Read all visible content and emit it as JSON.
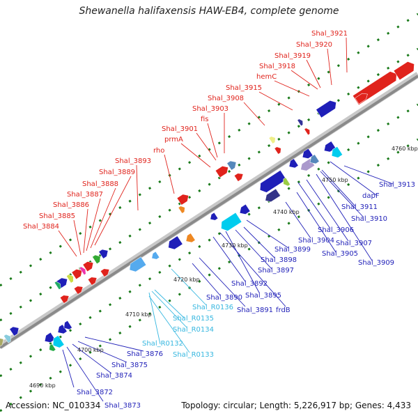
{
  "title": "Shewanella halifaxensis HAW-EB4, complete genome",
  "footer": {
    "accession": "Accession: NC_010334",
    "topology": "Topology: circular; Length: 5,226,917 bp; Genes: 4,433"
  },
  "colors": {
    "label_red": "#e0231c",
    "label_blue": "#1f1fb8",
    "label_cyan": "#36b7e0",
    "backbone": "#909090",
    "tick": "#1a7a1a"
  },
  "kbp_labels": [
    "4690 kbp",
    "4700 kbp",
    "4710 kbp",
    "4720 kbp",
    "4730 kbp",
    "4740 kbp",
    "4750 kbp",
    "4760 kbp"
  ],
  "top_labels": [
    "Shal_3884",
    "Shal_3885",
    "Shal_3886",
    "Shal_3887",
    "Shal_3888",
    "Shal_3889",
    "Shal_3893",
    "rho",
    "prmA",
    "Shal_3901",
    "fis",
    "Shal_3903",
    "Shal_3908",
    "Shal_3915",
    "hemC",
    "Shal_3918",
    "Shal_3919",
    "Shal_3920",
    "Shal_3921"
  ],
  "bottom_labels": [
    "Shal_3872",
    "Shal_3873",
    "Shal_3874",
    "Shal_3875",
    "Shal_3876",
    "Shal_R0132",
    "Shal_R0133",
    "Shal_R0134",
    "Shal_R0135",
    "Shal_R0136",
    "Shal_3890",
    "Shal_3891",
    "Shal_3892",
    "frdB",
    "Shal_3895",
    "Shal_3897",
    "Shal_3898",
    "Shal_3899",
    "Shal_3904",
    "Shal_3905",
    "Shal_3906",
    "Shal_3907",
    "Shal_3909",
    "Shal_3910",
    "Shal_3911",
    "dapF",
    "Shal_3913"
  ]
}
